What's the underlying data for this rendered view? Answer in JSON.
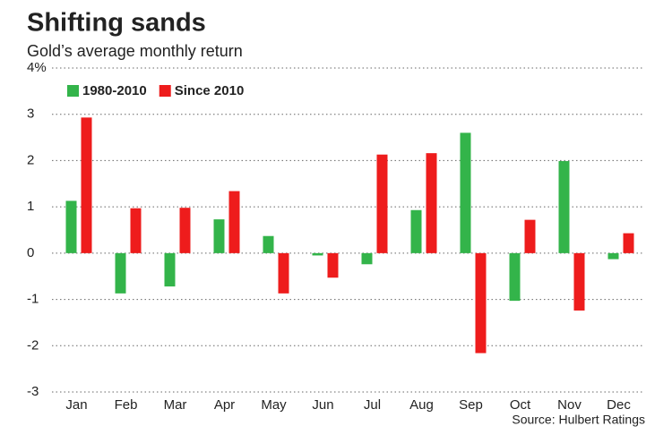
{
  "chart_data": {
    "type": "bar",
    "title": "Shifting sands",
    "subtitle": "Gold’s average monthly return",
    "source": "Source: Hulbert Ratings",
    "categories": [
      "Jan",
      "Feb",
      "Mar",
      "Apr",
      "May",
      "Jun",
      "Jul",
      "Aug",
      "Sep",
      "Oct",
      "Nov",
      "Dec"
    ],
    "series": [
      {
        "name": "1980-2010",
        "color": "#33b44a",
        "values": [
          1.13,
          -0.87,
          -0.72,
          0.73,
          0.37,
          -0.05,
          -0.24,
          0.93,
          2.6,
          -1.03,
          1.99,
          -0.13
        ]
      },
      {
        "name": "Since 2010",
        "color": "#ee1c1c",
        "values": [
          2.93,
          0.97,
          0.98,
          1.34,
          -0.87,
          -0.53,
          2.13,
          2.16,
          -2.16,
          0.72,
          -1.24,
          0.43
        ]
      }
    ],
    "ylim": [
      -3,
      4
    ],
    "yticks": [
      -3,
      -2,
      -1,
      0,
      1,
      2,
      3,
      {
        "value": 4,
        "label": "4%"
      }
    ],
    "grid": true,
    "legend": "top-left"
  }
}
